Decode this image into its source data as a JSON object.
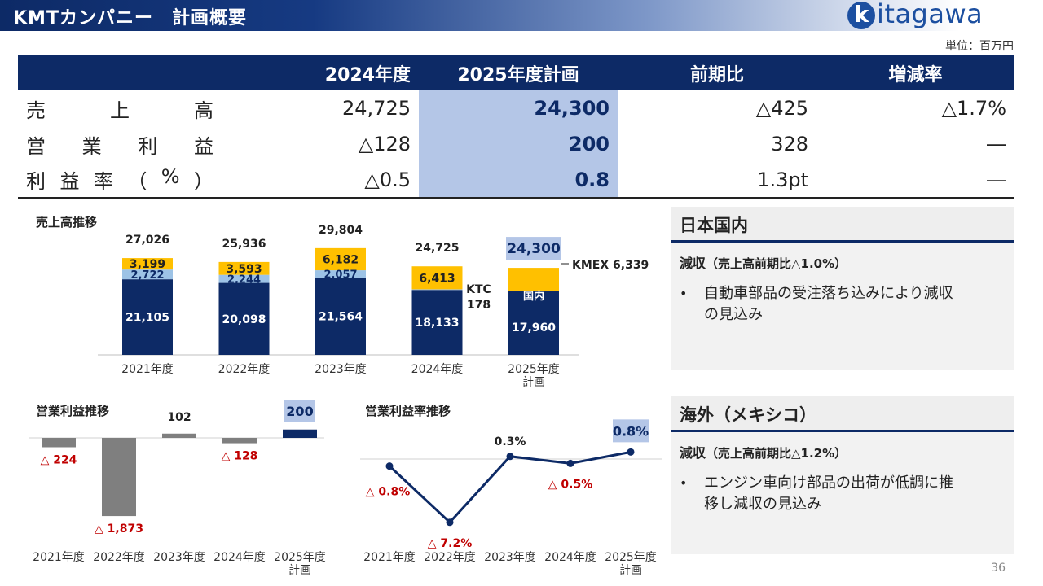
{
  "header": {
    "title": "KMTカンパニー　計画概要",
    "logo_mark": "k",
    "logo_text": "itagawa"
  },
  "unit": "単位：百万円",
  "table": {
    "headers": [
      "",
      "2024年度",
      "2025年度計画",
      "前期比",
      "増減率"
    ],
    "rows": [
      {
        "label": [
          "売",
          "上",
          "高"
        ],
        "v2024": "24,725",
        "v2025": "24,300",
        "diff": "△425",
        "rate": "△1.7%"
      },
      {
        "label": [
          "営",
          "業",
          "利",
          "益"
        ],
        "v2024": "△128",
        "v2025": "200",
        "diff": "328",
        "rate": "―"
      },
      {
        "label": [
          "利",
          "益",
          "率",
          "（",
          "%",
          "）"
        ],
        "v2024": "△0.5",
        "v2025": "0.8",
        "diff": "1.3pt",
        "rate": "―"
      }
    ]
  },
  "sales_chart": {
    "title": "売上高推移",
    "chart_data": {
      "type": "bar",
      "categories": [
        "2021年度",
        "2022年度",
        "2023年度",
        "2024年度",
        "2025年度\n計画"
      ],
      "series": [
        {
          "name": "国内",
          "values": [
            21105,
            20098,
            21564,
            18133,
            17960
          ]
        },
        {
          "name": "KTC",
          "values": [
            2722,
            2244,
            2057,
            178,
            null
          ]
        },
        {
          "name": "KMEX",
          "values": [
            3199,
            3593,
            6182,
            6413,
            6339
          ]
        }
      ],
      "totals": [
        "27,026",
        "25,936",
        "29,804",
        "24,725",
        "24,300"
      ],
      "labels_domestic": [
        "21,105",
        "20,098",
        "21,564",
        "18,133",
        "17,960"
      ],
      "labels_ktc": [
        "2,722",
        "2,244",
        "2,057",
        "",
        ""
      ],
      "labels_kmex": [
        "3,199",
        "3,593",
        "6,182",
        "6,413",
        ""
      ],
      "annot_ktc": [
        "KTC",
        "178"
      ],
      "annot_kmex": "KMEX 6,339",
      "annot_domestic": [
        "国内",
        "17,960"
      ],
      "colors": {
        "domestic": "#0d2a66",
        "ktc": "#9dc3e6",
        "kmex": "#ffc000",
        "total_highlight": "#b4c6e7"
      }
    }
  },
  "op_chart": {
    "title": "営業利益推移",
    "chart_data": {
      "type": "bar",
      "categories": [
        "2021年度",
        "2022年度",
        "2023年度",
        "2024年度",
        "2025年度\n計画"
      ],
      "values": [
        -224,
        -1873,
        102,
        -128,
        200
      ],
      "labels": [
        "△ 224",
        "△ 1,873",
        "102",
        "△ 128",
        "200"
      ],
      "colors": {
        "past": "#7f7f7f",
        "plan": "#0d2a66",
        "negative_label": "#c00000"
      }
    }
  },
  "margin_chart": {
    "title": "営業利益率推移",
    "chart_data": {
      "type": "line",
      "categories": [
        "2021年度",
        "2022年度",
        "2023年度",
        "2024年度",
        "2025年度\n計画"
      ],
      "values": [
        -0.8,
        -7.2,
        0.3,
        -0.5,
        0.8
      ],
      "labels": [
        "△ 0.8%",
        "△ 7.2%",
        "0.3%",
        "△ 0.5%",
        "0.8%"
      ],
      "color": "#0d2a66"
    }
  },
  "panels": [
    {
      "title": "日本国内",
      "sub": "減収",
      "sub_small": "（売上高前期比△1.0%）",
      "bullet": "•",
      "text_lines": [
        "自動車部品の受注落ち込みにより減収",
        "の見込み"
      ]
    },
    {
      "title": "海外（メキシコ）",
      "sub": "減収",
      "sub_small": "（売上高前期比△1.2%）",
      "bullet": "•",
      "text_lines": [
        "エンジン車向け部品の出荷が低調に推",
        "移し減収の見込み"
      ]
    }
  ],
  "page_number": "36"
}
